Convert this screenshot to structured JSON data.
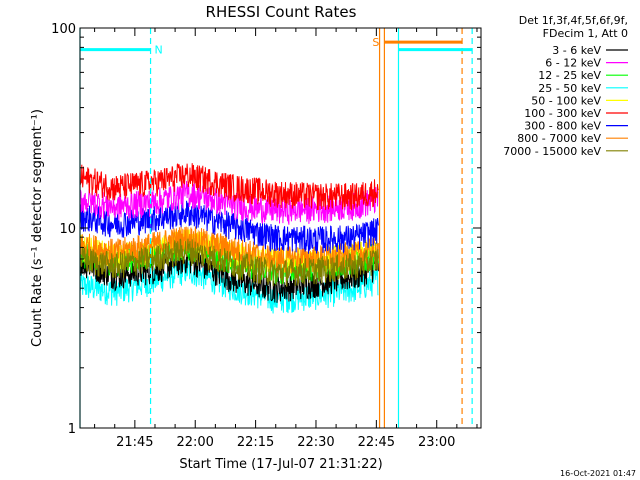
{
  "chart_data": {
    "type": "line",
    "title": "RHESSI Count Rates",
    "xlabel": "Start Time (17-Jul-07 21:31:22)",
    "ylabel": "Count Rate (s⁻¹ detector segment⁻¹)",
    "y_scale": "log",
    "ylim": [
      1,
      100
    ],
    "y_tick_labels": [
      "1",
      "10",
      "100"
    ],
    "x_ticks": [
      {
        "minute": 105,
        "label": "21:45"
      },
      {
        "minute": 120,
        "label": "22:00"
      },
      {
        "minute": 135,
        "label": "22:15"
      },
      {
        "minute": 150,
        "label": "22:30"
      },
      {
        "minute": 165,
        "label": "22:45"
      },
      {
        "minute": 180,
        "label": "23:00"
      }
    ],
    "xlim_minutes": [
      91.37,
      191.0
    ],
    "header": [
      "Det 1f,3f,4f,5f,6f,9f,",
      "FDecim 1, Att 0"
    ],
    "timestamp": "16-Oct-2021 01:47",
    "series": [
      {
        "name": "3 - 6 keV",
        "color": "#000000",
        "keypoints_t": [
          91.4,
          100,
          110,
          118,
          130,
          140,
          150,
          160,
          165.5
        ],
        "keypoints_v": [
          6.8,
          5.8,
          6.2,
          7.0,
          5.5,
          5.0,
          5.3,
          5.8,
          6.5
        ]
      },
      {
        "name": "6 - 12 keV",
        "color": "#ff00ff",
        "keypoints_t": [
          91.4,
          100,
          110,
          118,
          130,
          140,
          150,
          160,
          165.5
        ],
        "keypoints_v": [
          14,
          12.8,
          13.6,
          15.0,
          13.0,
          12.3,
          12.5,
          13.0,
          14
        ]
      },
      {
        "name": "12 - 25 keV",
        "color": "#00ff00",
        "keypoints_t": [
          91.4,
          100,
          110,
          118,
          130,
          140,
          150,
          160,
          165.5
        ],
        "keypoints_v": [
          7.5,
          6.8,
          7.5,
          8.2,
          6.8,
          6.2,
          6.4,
          6.8,
          7.5
        ]
      },
      {
        "name": "25 - 50 keV",
        "color": "#00ffff",
        "keypoints_t": [
          91.4,
          100,
          110,
          118,
          130,
          140,
          150,
          160,
          165.5
        ],
        "keypoints_v": [
          5.2,
          4.8,
          5.5,
          6.2,
          5.0,
          4.4,
          4.6,
          5.0,
          5.5
        ]
      },
      {
        "name": "50 - 100 keV",
        "color": "#ffff00",
        "keypoints_t": [
          91.4,
          100,
          110,
          118,
          130,
          140,
          150,
          160,
          165.5
        ],
        "keypoints_v": [
          8.0,
          7.2,
          7.8,
          8.6,
          7.4,
          6.8,
          7.0,
          7.3,
          7.8
        ]
      },
      {
        "name": "100 - 300 keV",
        "color": "#ff0000",
        "keypoints_t": [
          91.4,
          100,
          110,
          118,
          130,
          140,
          150,
          160,
          165.5
        ],
        "keypoints_v": [
          18,
          16,
          17,
          18.5,
          16,
          15,
          14.5,
          14.5,
          15.5
        ]
      },
      {
        "name": "300 - 800 keV",
        "color": "#0000ff",
        "keypoints_t": [
          91.4,
          100,
          110,
          118,
          130,
          140,
          150,
          160,
          165.5
        ],
        "keypoints_v": [
          11.5,
          10.5,
          11.2,
          12,
          10.2,
          9.0,
          8.8,
          9.0,
          9.8
        ]
      },
      {
        "name": "800 - 7000 keV",
        "color": "#ff8000",
        "keypoints_t": [
          91.4,
          100,
          110,
          118,
          130,
          140,
          150,
          160,
          165.5
        ],
        "keypoints_v": [
          8.3,
          7.6,
          8.3,
          9.0,
          7.8,
          7.0,
          7.1,
          7.4,
          8.0
        ]
      },
      {
        "name": "7000 - 15000 keV",
        "color": "#808000",
        "keypoints_t": [
          91.4,
          100,
          110,
          118,
          130,
          140,
          150,
          160,
          165.5
        ],
        "keypoints_v": [
          7.0,
          6.5,
          7.1,
          7.8,
          6.6,
          6.0,
          6.2,
          6.5,
          7.0
        ]
      }
    ],
    "flags": [
      {
        "label": "N",
        "color": "#00ffff",
        "start_minute": 91.37,
        "end_minute": 108.9,
        "level": 78
      },
      {
        "label": "S",
        "color": "#ff8000",
        "start_minute": 167.0,
        "end_minute": 186.3,
        "level": 85
      },
      {
        "label": "",
        "color": "#00ffff",
        "start_minute": 170.5,
        "end_minute": 188.8,
        "level": 78
      }
    ],
    "event_lines": [
      {
        "minute": 91.37,
        "color": "#00ffff",
        "style": "solid"
      },
      {
        "minute": 108.9,
        "color": "#00ffff",
        "style": "dashed"
      },
      {
        "minute": 165.8,
        "color": "#ff8000",
        "style": "solid"
      },
      {
        "minute": 167.0,
        "color": "#ff8000",
        "style": "solid"
      },
      {
        "minute": 170.5,
        "color": "#00ffff",
        "style": "solid"
      },
      {
        "minute": 186.3,
        "color": "#ff8000",
        "style": "dashed"
      },
      {
        "minute": 188.8,
        "color": "#00ffff",
        "style": "dashed"
      }
    ],
    "grid": false,
    "legend": "right"
  }
}
